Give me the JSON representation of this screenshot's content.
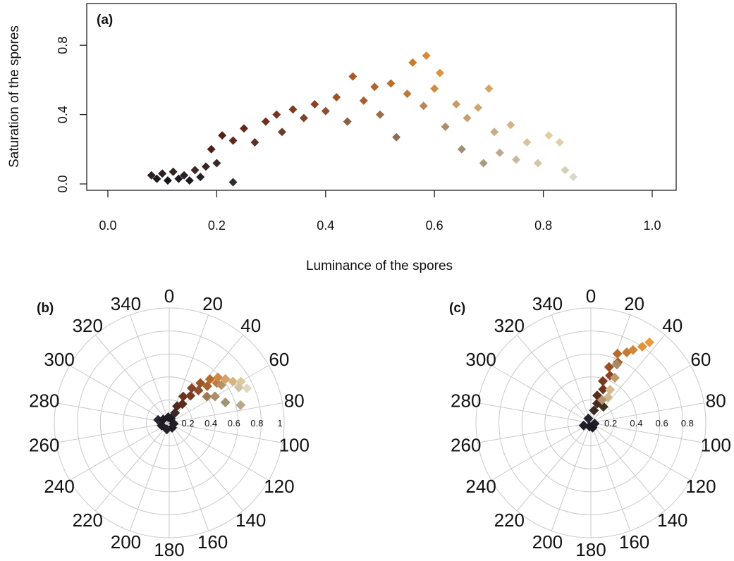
{
  "chart_data": [
    {
      "panel_label": "(a)",
      "type": "scatter",
      "xlabel": "Luminance of the spores",
      "ylabel": "Saturation of the spores",
      "xlim": [
        0,
        1.0
      ],
      "ylim": [
        0,
        1.0
      ],
      "x_ticks": [
        "0.0",
        "0.2",
        "0.4",
        "0.6",
        "0.8",
        "1.0"
      ],
      "y_ticks": [
        "0.0",
        "0.4",
        "0.8"
      ],
      "marker": "diamond",
      "points": [
        {
          "x": 0.08,
          "y": 0.05,
          "color": "#2b2320"
        },
        {
          "x": 0.09,
          "y": 0.03,
          "color": "#1e1a1f"
        },
        {
          "x": 0.1,
          "y": 0.06,
          "color": "#2a1f22"
        },
        {
          "x": 0.11,
          "y": 0.02,
          "color": "#17151b"
        },
        {
          "x": 0.12,
          "y": 0.07,
          "color": "#33251f"
        },
        {
          "x": 0.13,
          "y": 0.03,
          "color": "#1d1a22"
        },
        {
          "x": 0.14,
          "y": 0.05,
          "color": "#2a2329"
        },
        {
          "x": 0.15,
          "y": 0.02,
          "color": "#1b1820"
        },
        {
          "x": 0.16,
          "y": 0.08,
          "color": "#3a2924"
        },
        {
          "x": 0.17,
          "y": 0.04,
          "color": "#242028"
        },
        {
          "x": 0.18,
          "y": 0.1,
          "color": "#3b2521"
        },
        {
          "x": 0.19,
          "y": 0.2,
          "color": "#4a2218"
        },
        {
          "x": 0.2,
          "y": 0.12,
          "color": "#3c2826"
        },
        {
          "x": 0.21,
          "y": 0.28,
          "color": "#561f14"
        },
        {
          "x": 0.23,
          "y": 0.01,
          "color": "#2e2a2d"
        },
        {
          "x": 0.23,
          "y": 0.25,
          "color": "#5a2a1c"
        },
        {
          "x": 0.25,
          "y": 0.32,
          "color": "#63281a"
        },
        {
          "x": 0.27,
          "y": 0.24,
          "color": "#5b3226"
        },
        {
          "x": 0.29,
          "y": 0.36,
          "color": "#6e311d"
        },
        {
          "x": 0.31,
          "y": 0.4,
          "color": "#773520"
        },
        {
          "x": 0.32,
          "y": 0.3,
          "color": "#6b3d2c"
        },
        {
          "x": 0.34,
          "y": 0.43,
          "color": "#7f3a1f"
        },
        {
          "x": 0.36,
          "y": 0.38,
          "color": "#7b4430"
        },
        {
          "x": 0.38,
          "y": 0.46,
          "color": "#8a4423"
        },
        {
          "x": 0.4,
          "y": 0.42,
          "color": "#8a4e33"
        },
        {
          "x": 0.42,
          "y": 0.5,
          "color": "#9a5226"
        },
        {
          "x": 0.44,
          "y": 0.36,
          "color": "#8a5e45"
        },
        {
          "x": 0.45,
          "y": 0.62,
          "color": "#a85a22"
        },
        {
          "x": 0.47,
          "y": 0.48,
          "color": "#a5602f"
        },
        {
          "x": 0.49,
          "y": 0.56,
          "color": "#b06629"
        },
        {
          "x": 0.5,
          "y": 0.4,
          "color": "#a06c4c"
        },
        {
          "x": 0.52,
          "y": 0.58,
          "color": "#b9702c"
        },
        {
          "x": 0.53,
          "y": 0.27,
          "color": "#8e6d54"
        },
        {
          "x": 0.55,
          "y": 0.52,
          "color": "#bc7a3a"
        },
        {
          "x": 0.56,
          "y": 0.7,
          "color": "#c97a26"
        },
        {
          "x": 0.58,
          "y": 0.45,
          "color": "#b98552"
        },
        {
          "x": 0.585,
          "y": 0.74,
          "color": "#d88a32"
        },
        {
          "x": 0.6,
          "y": 0.55,
          "color": "#cc8e47"
        },
        {
          "x": 0.61,
          "y": 0.64,
          "color": "#dc953c"
        },
        {
          "x": 0.62,
          "y": 0.33,
          "color": "#ad8c6a"
        },
        {
          "x": 0.64,
          "y": 0.46,
          "color": "#c99a63"
        },
        {
          "x": 0.65,
          "y": 0.2,
          "color": "#a09074"
        },
        {
          "x": 0.66,
          "y": 0.38,
          "color": "#c4a072"
        },
        {
          "x": 0.68,
          "y": 0.44,
          "color": "#d0a56c"
        },
        {
          "x": 0.69,
          "y": 0.12,
          "color": "#a89a82"
        },
        {
          "x": 0.7,
          "y": 0.55,
          "color": "#d6a466"
        },
        {
          "x": 0.71,
          "y": 0.3,
          "color": "#c8ad84"
        },
        {
          "x": 0.72,
          "y": 0.18,
          "color": "#bba98c"
        },
        {
          "x": 0.74,
          "y": 0.34,
          "color": "#d4b384"
        },
        {
          "x": 0.75,
          "y": 0.14,
          "color": "#c8b99c"
        },
        {
          "x": 0.77,
          "y": 0.24,
          "color": "#d8c39a"
        },
        {
          "x": 0.79,
          "y": 0.12,
          "color": "#d2c6aa"
        },
        {
          "x": 0.81,
          "y": 0.28,
          "color": "#e0ce9f"
        },
        {
          "x": 0.83,
          "y": 0.24,
          "color": "#ded0a8"
        },
        {
          "x": 0.84,
          "y": 0.08,
          "color": "#d6d0bb"
        },
        {
          "x": 0.855,
          "y": 0.04,
          "color": "#dcd8c8"
        }
      ]
    },
    {
      "panel_label": "(b)",
      "type": "scatter",
      "coordinate_system": "polar",
      "angle_unit": "degrees",
      "angle_labels": [
        "0",
        "20",
        "40",
        "60",
        "80",
        "100",
        "120",
        "140",
        "160",
        "180",
        "200",
        "220",
        "240",
        "260",
        "280",
        "300",
        "320",
        "340"
      ],
      "radial_labels": [
        "0.2",
        "0.4",
        "0.6",
        "0.8",
        "1"
      ],
      "rlim": [
        0,
        1
      ],
      "marker": "diamond",
      "points": [
        {
          "theta": 20,
          "r": 0.04,
          "color": "#1c1a24"
        },
        {
          "theta": 150,
          "r": 0.05,
          "color": "#1e1c26"
        },
        {
          "theta": 200,
          "r": 0.06,
          "color": "#242028"
        },
        {
          "theta": 250,
          "r": 0.07,
          "color": "#201d27"
        },
        {
          "theta": 285,
          "r": 0.1,
          "color": "#2a2630"
        },
        {
          "theta": 300,
          "r": 0.06,
          "color": "#1c1a22"
        },
        {
          "theta": 350,
          "r": 0.05,
          "color": "#1f1b22"
        },
        {
          "theta": 100,
          "r": 0.04,
          "color": "#22202a"
        },
        {
          "theta": 30,
          "r": 0.1,
          "color": "#3a2a26"
        },
        {
          "theta": 25,
          "r": 0.16,
          "color": "#4d2a1e"
        },
        {
          "theta": 35,
          "r": 0.2,
          "color": "#5c2a18"
        },
        {
          "theta": 28,
          "r": 0.26,
          "color": "#6b3320"
        },
        {
          "theta": 38,
          "r": 0.3,
          "color": "#7a3a1e"
        },
        {
          "theta": 33,
          "r": 0.36,
          "color": "#884424"
        },
        {
          "theta": 42,
          "r": 0.38,
          "color": "#8a4e30"
        },
        {
          "theta": 38,
          "r": 0.44,
          "color": "#9c5626"
        },
        {
          "theta": 46,
          "r": 0.46,
          "color": "#a8622e"
        },
        {
          "theta": 43,
          "r": 0.52,
          "color": "#b46c2e"
        },
        {
          "theta": 50,
          "r": 0.54,
          "color": "#c07a38"
        },
        {
          "theta": 47,
          "r": 0.58,
          "color": "#cc8a44"
        },
        {
          "theta": 54,
          "r": 0.56,
          "color": "#b89068"
        },
        {
          "theta": 52,
          "r": 0.62,
          "color": "#d4a266"
        },
        {
          "theta": 57,
          "r": 0.66,
          "color": "#d8b480"
        },
        {
          "theta": 60,
          "r": 0.72,
          "color": "#dccaa0"
        },
        {
          "theta": 63,
          "r": 0.68,
          "color": "#cfc4a6"
        },
        {
          "theta": 66,
          "r": 0.74,
          "color": "#e0d8c0"
        },
        {
          "theta": 70,
          "r": 0.52,
          "color": "#a09478"
        },
        {
          "theta": 76,
          "r": 0.64,
          "color": "#b6a98c"
        },
        {
          "theta": 60,
          "r": 0.46,
          "color": "#a88e6a"
        },
        {
          "theta": 55,
          "r": 0.4,
          "color": "#9e7a54"
        }
      ]
    },
    {
      "panel_label": "(c)",
      "type": "scatter",
      "coordinate_system": "polar",
      "angle_unit": "degrees",
      "angle_labels": [
        "0",
        "20",
        "40",
        "60",
        "80",
        "100",
        "120",
        "140",
        "160",
        "180",
        "200",
        "220",
        "240",
        "260",
        "280",
        "300",
        "320",
        "340"
      ],
      "radial_labels": [
        "0.2",
        "0.4",
        "0.6",
        "0.8"
      ],
      "rlim": [
        0,
        0.9
      ],
      "marker": "diamond",
      "points": [
        {
          "theta": 200,
          "r": 0.03,
          "color": "#1c1a24"
        },
        {
          "theta": 250,
          "r": 0.06,
          "color": "#1e1c26"
        },
        {
          "theta": 100,
          "r": 0.03,
          "color": "#221f28"
        },
        {
          "theta": 160,
          "r": 0.04,
          "color": "#1d1a23"
        },
        {
          "theta": 330,
          "r": 0.04,
          "color": "#25212a"
        },
        {
          "theta": 14,
          "r": 0.1,
          "color": "#3a2822"
        },
        {
          "theta": 18,
          "r": 0.16,
          "color": "#4a2a1e"
        },
        {
          "theta": 13,
          "r": 0.22,
          "color": "#5a2c1c"
        },
        {
          "theta": 20,
          "r": 0.28,
          "color": "#6b3420"
        },
        {
          "theta": 16,
          "r": 0.34,
          "color": "#7a3a20"
        },
        {
          "theta": 22,
          "r": 0.4,
          "color": "#8a4424"
        },
        {
          "theta": 18,
          "r": 0.46,
          "color": "#9a5026"
        },
        {
          "theta": 24,
          "r": 0.52,
          "color": "#aa5e2a"
        },
        {
          "theta": 21,
          "r": 0.58,
          "color": "#b86a2e"
        },
        {
          "theta": 27,
          "r": 0.62,
          "color": "#c67832"
        },
        {
          "theta": 30,
          "r": 0.66,
          "color": "#d2863a"
        },
        {
          "theta": 34,
          "r": 0.72,
          "color": "#e0923a"
        },
        {
          "theta": 36,
          "r": 0.78,
          "color": "#e89a40"
        },
        {
          "theta": 28,
          "r": 0.4,
          "color": "#c09a6c"
        },
        {
          "theta": 30,
          "r": 0.3,
          "color": "#d6b88a"
        },
        {
          "theta": 34,
          "r": 0.24,
          "color": "#cfb690"
        },
        {
          "theta": 38,
          "r": 0.16,
          "color": "#3a3420"
        },
        {
          "theta": 26,
          "r": 0.2,
          "color": "#b89470"
        },
        {
          "theta": 24,
          "r": 0.5,
          "color": "#a88a6a"
        }
      ]
    }
  ]
}
